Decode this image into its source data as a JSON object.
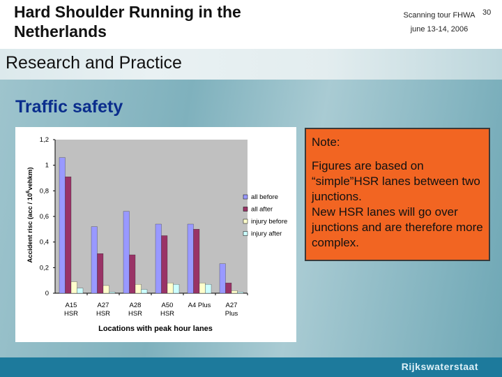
{
  "header": {
    "title": "Hard Shoulder Running in the Netherlands",
    "tour_line1": "Scanning tour FHWA",
    "tour_line2": "june 13-14, 2006",
    "page": "30"
  },
  "subtitle": "Research and Practice",
  "section_title": "Traffic safety",
  "note": {
    "title": "Note:",
    "text": "Figures are based on “simple”HSR lanes between two junctions.\nNew HSR lanes will go over junctions and are therefore more complex."
  },
  "footer": {
    "logo_text": "Rijkswaterstaat"
  },
  "colors": {
    "all_before": "#9999ff",
    "all_after": "#993366",
    "injury_before": "#ffffcc",
    "injury_after": "#ccffff",
    "note_bg": "#f26522",
    "section_title": "#0a2d8c",
    "footer_bg": "#1d7a9c"
  },
  "chart_data": {
    "type": "bar",
    "categories": [
      [
        "A15",
        "HSR"
      ],
      [
        "A27",
        "HSR"
      ],
      [
        "A28",
        "HSR"
      ],
      [
        "A50",
        "HSR"
      ],
      [
        "A4 Plus",
        ""
      ],
      [
        "A27",
        "Plus"
      ]
    ],
    "series": [
      {
        "name": "all before",
        "values": [
          1.06,
          0.52,
          0.64,
          0.54,
          0.54,
          0.23
        ]
      },
      {
        "name": "all after",
        "values": [
          0.91,
          0.31,
          0.3,
          0.45,
          0.5,
          0.08
        ]
      },
      {
        "name": "injury before",
        "values": [
          0.09,
          0.06,
          0.07,
          0.08,
          0.08,
          0.02
        ]
      },
      {
        "name": "injury after",
        "values": [
          0.04,
          0.01,
          0.03,
          0.07,
          0.07,
          0.01
        ]
      }
    ],
    "ylabel": "Accident risc (acc / 10",
    "ylabel_sup": "6",
    "ylabel_tail": "vehkm)",
    "xlabel": "Locations with peak hour lanes",
    "yticks": [
      "0",
      "0,2",
      "0,4",
      "0,6",
      "0,8",
      "1",
      "1,2"
    ],
    "ylim": [
      0,
      1.2
    ],
    "grid": false,
    "legend_position": "right"
  }
}
